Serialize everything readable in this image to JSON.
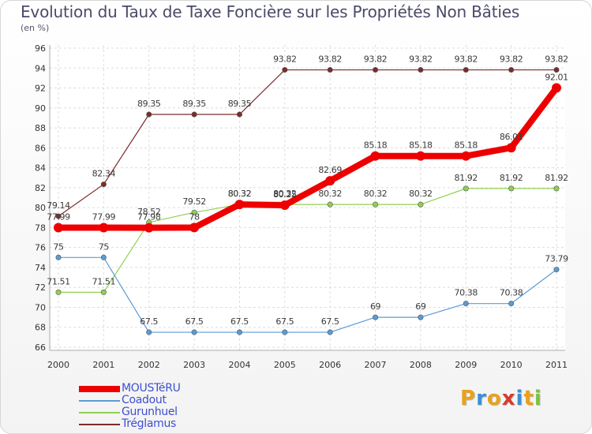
{
  "title": "Evolution du Taux de Taxe Foncière sur les Propriétés Non Bâties",
  "subtitle": "(en %)",
  "logo": {
    "text": "Proxiti",
    "colors": [
      "#e8a21a",
      "#3b8fd6",
      "#e8a21a",
      "#d83a2c",
      "#3b8fd6",
      "#e8a21a",
      "#7cc242"
    ]
  },
  "chart_data": {
    "type": "line",
    "x": [
      "2000",
      "2001",
      "2002",
      "2003",
      "2004",
      "2005",
      "2006",
      "2007",
      "2008",
      "2009",
      "2010",
      "2011"
    ],
    "ylim": [
      66,
      96
    ],
    "yticks": [
      "66",
      "68",
      "70",
      "72",
      "74",
      "76",
      "78",
      "80",
      "82",
      "84",
      "86",
      "88",
      "90",
      "92",
      "94",
      "96"
    ],
    "grid": true,
    "legend_position": "bottom-left",
    "series": [
      {
        "name": "MOUSTéRU",
        "color": "#ee0000",
        "width": 8,
        "values": [
          77.99,
          77.99,
          77.98,
          78,
          80.32,
          80.25,
          82.69,
          85.18,
          85.18,
          85.18,
          86.01,
          92.01
        ],
        "labels": [
          "77.99",
          "77.99",
          "77.98",
          "78",
          "80.32",
          "80.25",
          "82.69",
          "85.18",
          "85.18",
          "85.18",
          "86.01",
          "92.01"
        ]
      },
      {
        "name": "Coadout",
        "color": "#5b9bd5",
        "width": 1.2,
        "values": [
          75,
          75,
          67.5,
          67.5,
          67.5,
          67.5,
          67.5,
          69,
          69,
          70.38,
          70.38,
          73.79
        ],
        "labels": [
          "75",
          "75",
          "67.5",
          "67.5",
          "67.5",
          "67.5",
          "67.5",
          "69",
          "69",
          "70.38",
          "70.38",
          "73.79"
        ]
      },
      {
        "name": "Gurunhuel",
        "color": "#92d050",
        "width": 1.2,
        "values": [
          71.51,
          71.51,
          78.52,
          79.52,
          80.32,
          80.32,
          80.32,
          80.32,
          80.32,
          81.92,
          81.92,
          81.92
        ],
        "labels": [
          "71.51",
          "71.51",
          "78.52",
          "79.52",
          "80.32",
          "80.32",
          "80.32",
          "80.32",
          "80.32",
          "81.92",
          "81.92",
          "81.92"
        ]
      },
      {
        "name": "Tréglamus",
        "color": "#7b2c2c",
        "width": 1.2,
        "values": [
          79.14,
          82.34,
          89.35,
          89.35,
          89.35,
          93.82,
          93.82,
          93.82,
          93.82,
          93.82,
          93.82,
          93.82
        ],
        "labels": [
          "79.14",
          "82.34",
          "89.35",
          "89.35",
          "89.35",
          "93.82",
          "93.82",
          "93.82",
          "93.82",
          "93.82",
          "93.82",
          "93.82"
        ]
      }
    ]
  }
}
